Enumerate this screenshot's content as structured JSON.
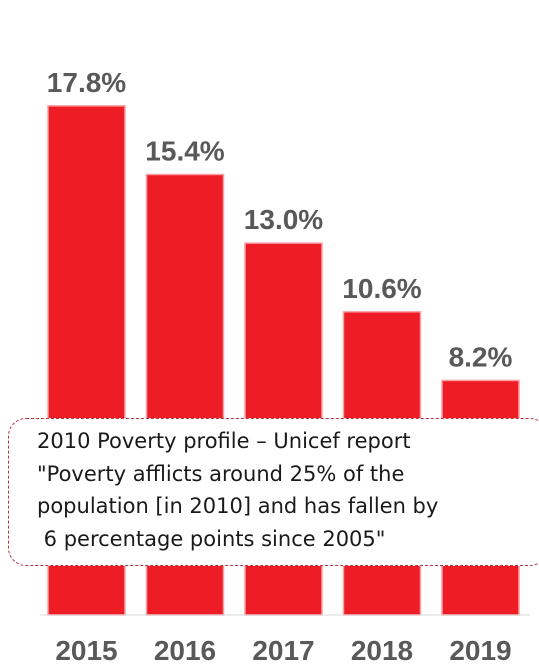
{
  "chart_data": {
    "type": "bar",
    "categories": [
      "2015",
      "2016",
      "2017",
      "2018",
      "2019"
    ],
    "values": [
      17.8,
      15.4,
      13.0,
      10.6,
      8.2
    ],
    "data_labels": [
      "17.8%",
      "15.4%",
      "13.0%",
      "10.6%",
      "8.2%"
    ],
    "ylim": [
      0,
      21.5
    ],
    "title": "",
    "xlabel": "",
    "ylabel": "",
    "grid": false,
    "colors": {
      "bar": "#ee1c25",
      "label": "#595959"
    }
  },
  "note": {
    "lines": [
      "2010 Poverty profile – Unicef report",
      "\"Poverty afflicts around 25% of the",
      "population [in 2010] and has fallen by",
      " 6 percentage points since 2005\""
    ],
    "border_color": "#b8323a"
  }
}
